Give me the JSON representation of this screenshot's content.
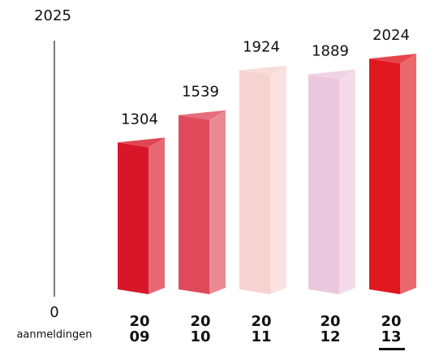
{
  "chart_data": {
    "type": "bar",
    "categories": [
      [
        "20",
        "09"
      ],
      [
        "20",
        "10"
      ],
      [
        "20",
        "11"
      ],
      [
        "20",
        "12"
      ],
      [
        "20",
        "13"
      ]
    ],
    "values": [
      1304,
      1539,
      1924,
      1889,
      2024
    ],
    "colors": [
      "#d8162a",
      "#df4a5a",
      "#f6d3d0",
      "#ecc8de",
      "#e0171f"
    ],
    "highlight": 4,
    "ylim": [
      0,
      2025
    ],
    "yticks": [
      0,
      2025
    ],
    "y_label": "aanmeldingen"
  }
}
